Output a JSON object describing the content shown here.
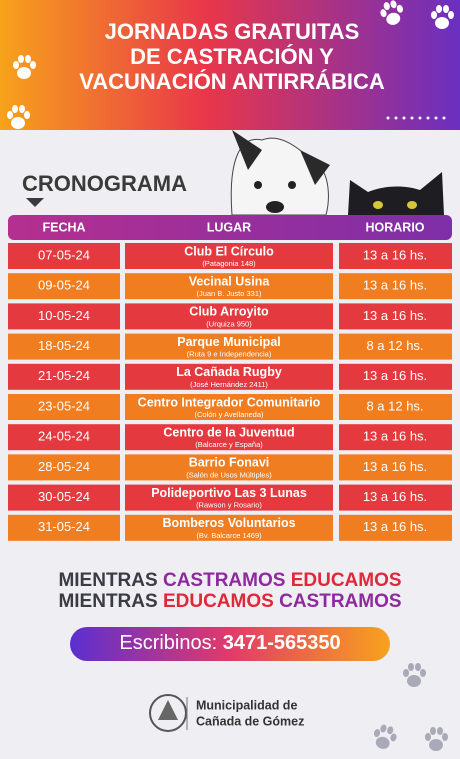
{
  "header": {
    "title_lines": [
      "JORNADAS GRATUITAS",
      "DE CASTRACIÓN Y",
      "VACUNACIÓN ANTIRRÁBICA"
    ]
  },
  "section_title": "CRONOGRAMA",
  "table": {
    "columns": [
      "FECHA",
      "LUGAR",
      "HORARIO"
    ],
    "rows": [
      {
        "date": "07-05-24",
        "place": "Club El Círculo",
        "note": "(Patagonia 148)",
        "hours": "13 a 16 hs."
      },
      {
        "date": "09-05-24",
        "place": "Vecinal Usina",
        "note": "(Juan B. Justo 331)",
        "hours": "13 a 16 hs."
      },
      {
        "date": "10-05-24",
        "place": "Club Arroyito",
        "note": "(Urquiza 950)",
        "hours": "13 a 16 hs."
      },
      {
        "date": "18-05-24",
        "place": "Parque Municipal",
        "note": "(Ruta 9 e Independencia)",
        "hours": "8 a 12 hs."
      },
      {
        "date": "21-05-24",
        "place": "La Cañada Rugby",
        "note": "(José Hernández 2411)",
        "hours": "13 a 16 hs."
      },
      {
        "date": "23-05-24",
        "place": "Centro Integrador Comunitario",
        "note": "(Colón y Avellaneda)",
        "hours": "8 a 12 hs."
      },
      {
        "date": "24-05-24",
        "place": "Centro de la Juventud",
        "note": "(Balcarce y España)",
        "hours": "13 a 16 hs."
      },
      {
        "date": "28-05-24",
        "place": "Barrio Fonavi",
        "note": "(Salón de Usos Múltiples)",
        "hours": "13 a 16 hs."
      },
      {
        "date": "30-05-24",
        "place": "Polideportivo Las 3 Lunas",
        "note": "(Rawson y Rosario)",
        "hours": "13 a 16 hs."
      },
      {
        "date": "31-05-24",
        "place": "Bomberos Voluntarios",
        "note": "(Bv. Balcarce 1469)",
        "hours": "13 a 16 hs."
      }
    ]
  },
  "slogan": [
    [
      {
        "text": "MIENTRAS",
        "color": "#3b3b45"
      },
      {
        "text": "CASTRAMOS",
        "color": "#8e2a9e"
      },
      {
        "text": "EDUCAMOS",
        "color": "#e0283a"
      }
    ],
    [
      {
        "text": "MIENTRAS",
        "color": "#3b3b45"
      },
      {
        "text": "EDUCAMOS",
        "color": "#e0283a"
      },
      {
        "text": "CASTRAMOS",
        "color": "#8e2a9e"
      }
    ]
  ],
  "contact": {
    "label": "Escribinos:",
    "phone": "3471-565350"
  },
  "footer": {
    "lines": [
      "Municipalidad de",
      "Cañada de Gómez"
    ]
  }
}
